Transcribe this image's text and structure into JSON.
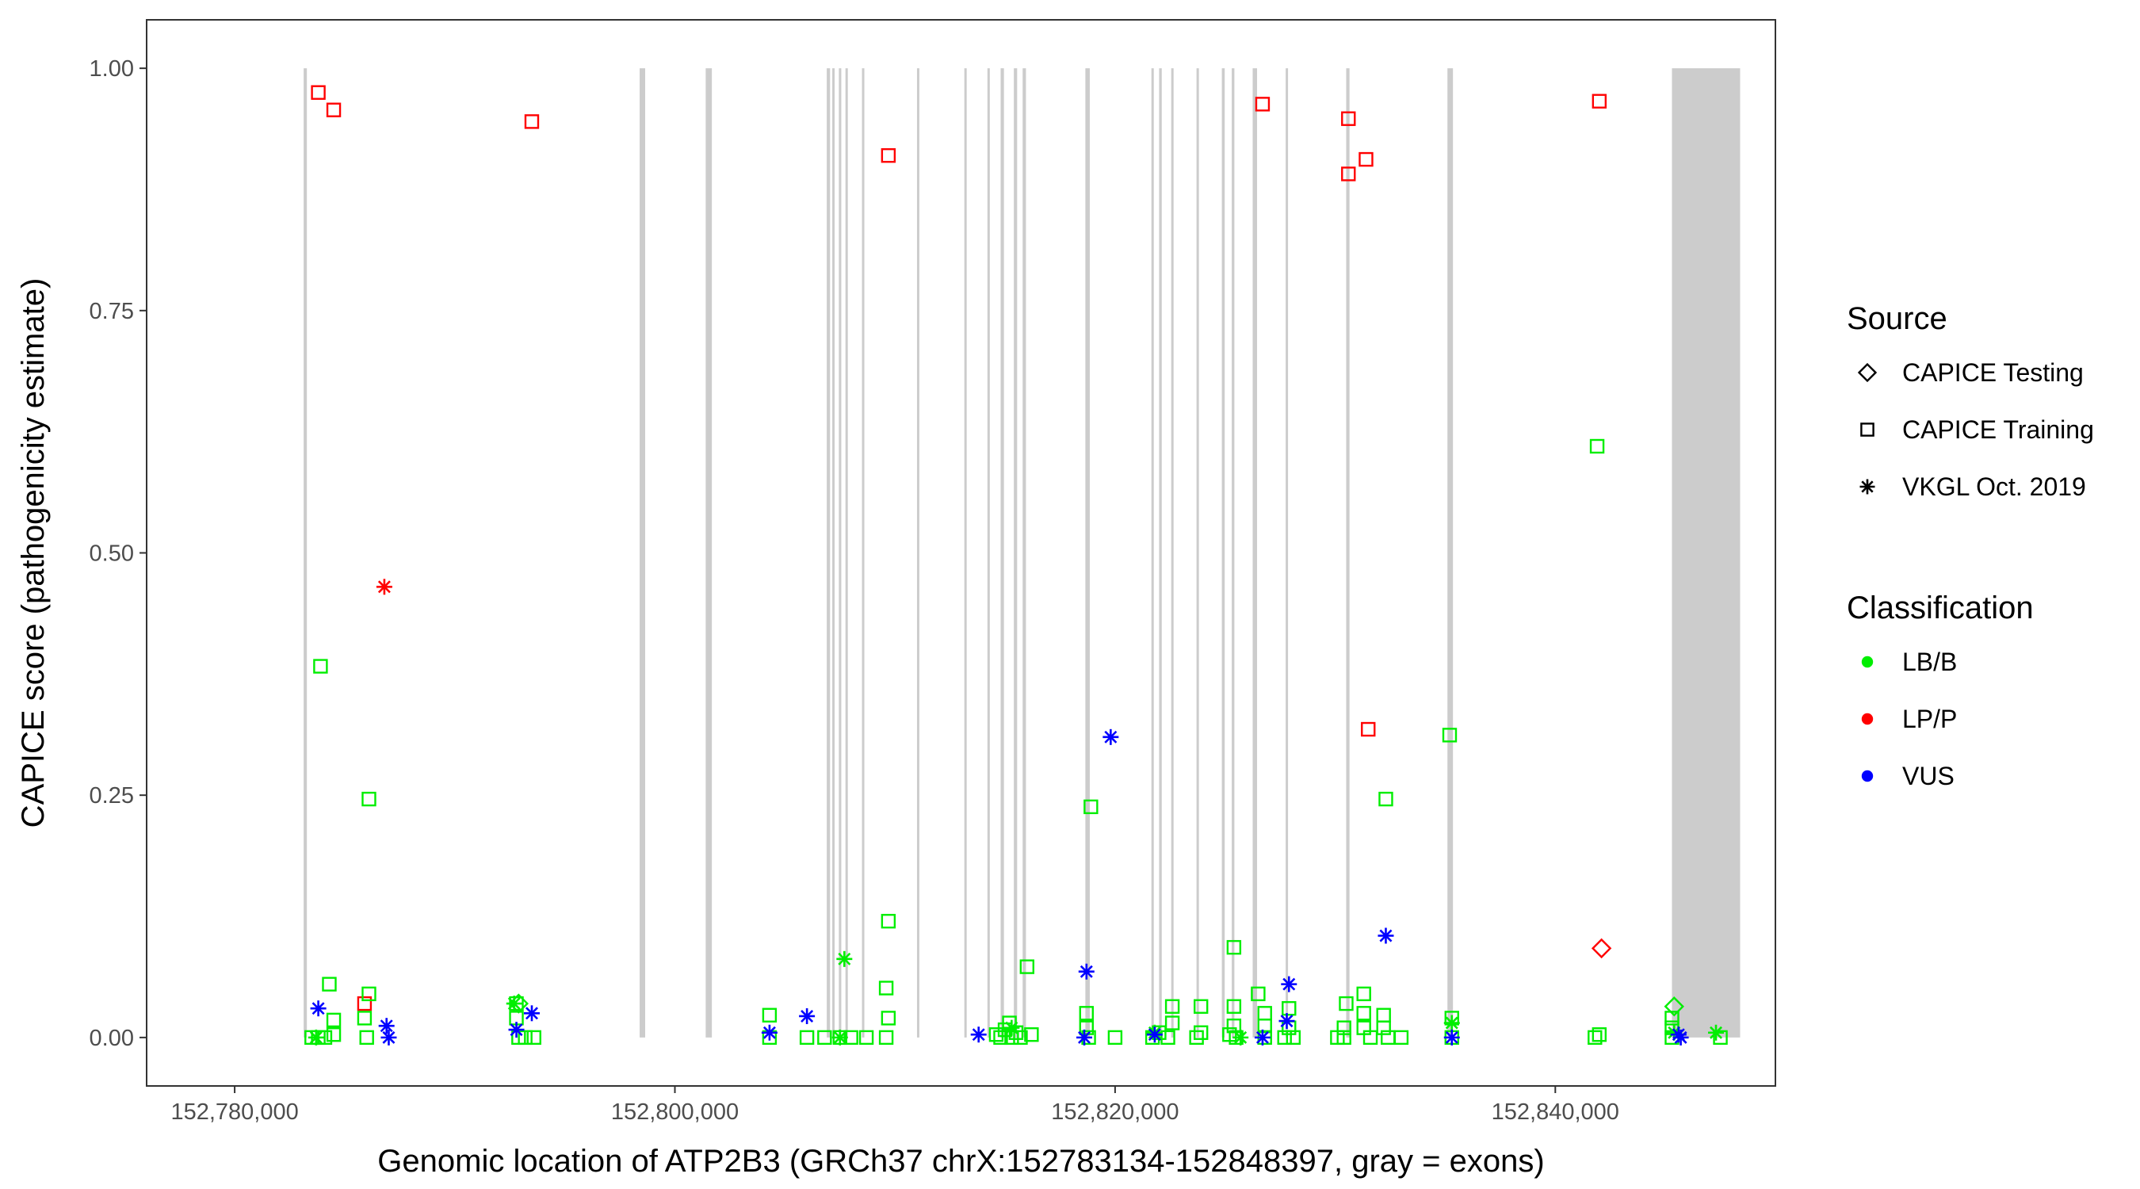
{
  "chart_data": {
    "type": "scatter",
    "title": "",
    "xlabel": "Genomic location of ATP2B3 (GRCh37 chrX:152783134-152848397, gray = exons)",
    "ylabel": "CAPICE score (pathogenicity estimate)",
    "xlim": [
      152776000,
      152850000
    ],
    "ylim": [
      -0.05,
      1.05
    ],
    "x_ticks": [
      {
        "value": 152780000,
        "label": "152,780,000"
      },
      {
        "value": 152800000,
        "label": "152,800,000"
      },
      {
        "value": 152820000,
        "label": "152,820,000"
      },
      {
        "value": 152840000,
        "label": "152,840,000"
      }
    ],
    "y_ticks": [
      {
        "value": 0.0,
        "label": "0.00"
      },
      {
        "value": 0.25,
        "label": "0.25"
      },
      {
        "value": 0.5,
        "label": "0.50"
      },
      {
        "value": 0.75,
        "label": "0.75"
      },
      {
        "value": 1.0,
        "label": "1.00"
      }
    ],
    "grid": false,
    "exon_color": "#cccccc",
    "exons": [
      [
        152783134,
        152783280
      ],
      [
        152798400,
        152798650
      ],
      [
        152801400,
        152801680
      ],
      [
        152806900,
        152807050
      ],
      [
        152807150,
        152807250
      ],
      [
        152807450,
        152807560
      ],
      [
        152807750,
        152807850
      ],
      [
        152808500,
        152808600
      ],
      [
        152811000,
        152811080
      ],
      [
        152813150,
        152813250
      ],
      [
        152814200,
        152814300
      ],
      [
        152814800,
        152814950
      ],
      [
        152815400,
        152815550
      ],
      [
        152815800,
        152815950
      ],
      [
        152818650,
        152818850
      ],
      [
        152821650,
        152821750
      ],
      [
        152822000,
        152822120
      ],
      [
        152822550,
        152822650
      ],
      [
        152823700,
        152823800
      ],
      [
        152824850,
        152824980
      ],
      [
        152825300,
        152825420
      ],
      [
        152826250,
        152826450
      ],
      [
        152827750,
        152827850
      ],
      [
        152830500,
        152830650
      ],
      [
        152835100,
        152835350
      ],
      [
        152845300,
        152848397
      ]
    ],
    "legend": {
      "position": "right",
      "source": {
        "title": "Source",
        "entries": [
          {
            "label": "CAPICE Testing",
            "shape": "diamond"
          },
          {
            "label": "CAPICE Training",
            "shape": "square"
          },
          {
            "label": "VKGL Oct. 2019",
            "shape": "asterisk"
          }
        ]
      },
      "classification": {
        "title": "Classification",
        "entries": [
          {
            "label": "LB/B",
            "color": "#00ee00"
          },
          {
            "label": "LP/P",
            "color": "#ff0000"
          },
          {
            "label": "VUS",
            "color": "#0000ff"
          }
        ]
      }
    },
    "series": [
      {
        "source": "CAPICE Training",
        "classification": "LP/P",
        "points": [
          [
            152783800,
            0.975
          ],
          [
            152784500,
            0.957
          ],
          [
            152793500,
            0.945
          ],
          [
            152809700,
            0.91
          ],
          [
            152826700,
            0.963
          ],
          [
            152830600,
            0.948
          ],
          [
            152830600,
            0.891
          ],
          [
            152831400,
            0.906
          ],
          [
            152831500,
            0.318
          ],
          [
            152842000,
            0.966
          ],
          [
            152785900,
            0.035
          ]
        ]
      },
      {
        "source": "VKGL Oct. 2019",
        "classification": "LP/P",
        "points": [
          [
            152786800,
            0.465
          ]
        ]
      },
      {
        "source": "CAPICE Testing",
        "classification": "LP/P",
        "points": [
          [
            152842100,
            0.092
          ]
        ]
      },
      {
        "source": "CAPICE Training",
        "classification": "LB/B",
        "points": [
          [
            152783900,
            0.383
          ],
          [
            152784300,
            0.055
          ],
          [
            152784500,
            0.018
          ],
          [
            152784500,
            0.003
          ],
          [
            152783500,
            0.0
          ],
          [
            152783800,
            0.0
          ],
          [
            152784100,
            0.0
          ],
          [
            152786100,
            0.246
          ],
          [
            152786100,
            0.045
          ],
          [
            152785900,
            0.02
          ],
          [
            152786000,
            0.0
          ],
          [
            152792800,
            0.035
          ],
          [
            152792800,
            0.02
          ],
          [
            152793200,
            0.0
          ],
          [
            152793600,
            0.0
          ],
          [
            152792900,
            0.0
          ],
          [
            152804300,
            0.023
          ],
          [
            152804300,
            0.0
          ],
          [
            152806000,
            0.0
          ],
          [
            152806800,
            0.0
          ],
          [
            152807500,
            0.0
          ],
          [
            152808000,
            0.0
          ],
          [
            152808700,
            0.0
          ],
          [
            152809700,
            0.12
          ],
          [
            152809600,
            0.051
          ],
          [
            152809700,
            0.02
          ],
          [
            152809600,
            0.0
          ],
          [
            152816000,
            0.073
          ],
          [
            152815200,
            0.015
          ],
          [
            152815000,
            0.008
          ],
          [
            152815500,
            0.005
          ],
          [
            152816200,
            0.003
          ],
          [
            152814600,
            0.003
          ],
          [
            152814800,
            0.0
          ],
          [
            152815300,
            0.0
          ],
          [
            152815700,
            0.0
          ],
          [
            152818900,
            0.238
          ],
          [
            152818700,
            0.025
          ],
          [
            152818700,
            0.01
          ],
          [
            152818800,
            0.0
          ],
          [
            152820000,
            0.0
          ],
          [
            152822600,
            0.032
          ],
          [
            152822600,
            0.015
          ],
          [
            152822000,
            0.005
          ],
          [
            152822400,
            0.0
          ],
          [
            152821700,
            0.0
          ],
          [
            152823900,
            0.032
          ],
          [
            152823900,
            0.005
          ],
          [
            152823700,
            0.0
          ],
          [
            152825400,
            0.093
          ],
          [
            152825400,
            0.032
          ],
          [
            152825400,
            0.012
          ],
          [
            152825500,
            0.0
          ],
          [
            152825200,
            0.003
          ],
          [
            152826500,
            0.045
          ],
          [
            152826800,
            0.025
          ],
          [
            152826800,
            0.012
          ],
          [
            152826800,
            0.0
          ],
          [
            152827900,
            0.03
          ],
          [
            152827900,
            0.01
          ],
          [
            152828100,
            0.0
          ],
          [
            152827700,
            0.0
          ],
          [
            152830500,
            0.035
          ],
          [
            152830400,
            0.01
          ],
          [
            152830400,
            0.0
          ],
          [
            152830100,
            0.0
          ],
          [
            152831300,
            0.045
          ],
          [
            152831300,
            0.025
          ],
          [
            152831300,
            0.01
          ],
          [
            152831600,
            0.0
          ],
          [
            152832300,
            0.246
          ],
          [
            152832200,
            0.023
          ],
          [
            152832200,
            0.01
          ],
          [
            152832400,
            0.0
          ],
          [
            152833000,
            0.0
          ],
          [
            152835200,
            0.312
          ],
          [
            152835300,
            0.02
          ],
          [
            152835300,
            0.0
          ],
          [
            152841900,
            0.61
          ],
          [
            152842000,
            0.003
          ],
          [
            152841800,
            0.0
          ],
          [
            152845300,
            0.02
          ],
          [
            152845300,
            0.01
          ],
          [
            152845300,
            0.0
          ],
          [
            152847500,
            0.0
          ]
        ]
      },
      {
        "source": "VKGL Oct. 2019",
        "classification": "LB/B",
        "points": [
          [
            152807700,
            0.081
          ],
          [
            152792700,
            0.035
          ],
          [
            152783700,
            0.0
          ],
          [
            152807500,
            0.0
          ],
          [
            152815300,
            0.01
          ],
          [
            152821800,
            0.005
          ],
          [
            152825700,
            0.0
          ],
          [
            152835300,
            0.015
          ],
          [
            152845400,
            0.005
          ],
          [
            152847300,
            0.005
          ]
        ]
      },
      {
        "source": "CAPICE Testing",
        "classification": "LB/B",
        "points": [
          [
            152845400,
            0.032
          ],
          [
            152792900,
            0.035
          ]
        ]
      },
      {
        "source": "VKGL Oct. 2019",
        "classification": "VUS",
        "points": [
          [
            152783800,
            0.03
          ],
          [
            152786900,
            0.012
          ],
          [
            152787000,
            0.0
          ],
          [
            152792800,
            0.008
          ],
          [
            152793500,
            0.025
          ],
          [
            152804300,
            0.005
          ],
          [
            152806000,
            0.022
          ],
          [
            152813800,
            0.003
          ],
          [
            152818700,
            0.068
          ],
          [
            152818600,
            0.0
          ],
          [
            152819800,
            0.31
          ],
          [
            152821800,
            0.003
          ],
          [
            152826700,
            0.0
          ],
          [
            152827900,
            0.055
          ],
          [
            152827800,
            0.017
          ],
          [
            152832300,
            0.105
          ],
          [
            152835300,
            0.0
          ],
          [
            152845600,
            0.003
          ],
          [
            152845700,
            0.0
          ]
        ]
      }
    ]
  }
}
